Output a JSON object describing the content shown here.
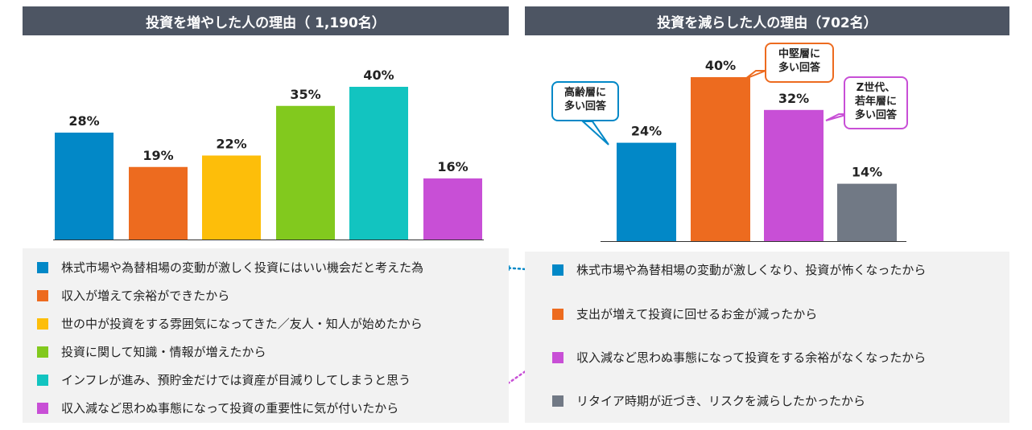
{
  "left_title": "投資を増やした人の理由（ 1,190名）",
  "right_title": "投資を減らした人の理由（702名）",
  "colors": {
    "title_bg": "#4d5563",
    "blue": "#0288c7",
    "orange": "#ed6b1f",
    "yellow": "#fdbe0a",
    "green": "#82c91e",
    "teal": "#12c4c0",
    "purple": "#c84fd6",
    "gray": "#717985"
  },
  "chart_data": [
    {
      "type": "bar",
      "title": "投資を増やした人の理由（ 1,190名）",
      "unit": "%",
      "ylim": [
        0,
        45
      ],
      "categories": [
        "株式市場や為替相場の変動が激しく投資にはいい機会だと考えた為",
        "収入が増えて余裕ができたから",
        "世の中が投資をする雰囲気になってきた／友人・知人が始めたから",
        "投資に関して知識・情報が増えたから",
        "インフレが進み、預貯金だけでは資産が目減りしてしまうと思う",
        "収入減など思わぬ事態になって投資の重要性に気が付いたから"
      ],
      "values": [
        28,
        19,
        22,
        35,
        40,
        16
      ],
      "labels": [
        "28%",
        "19%",
        "22%",
        "35%",
        "40%",
        "16%"
      ],
      "bar_colors": [
        "#0288c7",
        "#ed6b1f",
        "#fdbe0a",
        "#82c91e",
        "#12c4c0",
        "#c84fd6"
      ]
    },
    {
      "type": "bar",
      "title": "投資を減らした人の理由（702名）",
      "unit": "%",
      "ylim": [
        0,
        45
      ],
      "categories": [
        "株式市場や為替相場の変動が激しくなり、投資が怖くなったから",
        "支出が増えて投資に回せるお金が減ったから",
        "収入減など思わぬ事態になって投資をする余裕がなくなったから",
        "リタイア時期が近づき、リスクを減らしたかったから"
      ],
      "values": [
        24,
        40,
        32,
        14
      ],
      "labels": [
        "24%",
        "40%",
        "32%",
        "14%"
      ],
      "bar_colors": [
        "#0288c7",
        "#ed6b1f",
        "#c84fd6",
        "#717985"
      ],
      "annotations": [
        {
          "text_lines": [
            "高齢層に",
            "多い回答"
          ],
          "bar": 0,
          "color": "#0288c7"
        },
        {
          "text_lines": [
            "中堅層に",
            "多い回答"
          ],
          "bar": 1,
          "color": "#ed6b1f"
        },
        {
          "text_lines": [
            "Z世代、",
            "若年層に",
            "多い回答"
          ],
          "bar": 2,
          "color": "#c84fd6"
        }
      ]
    }
  ]
}
